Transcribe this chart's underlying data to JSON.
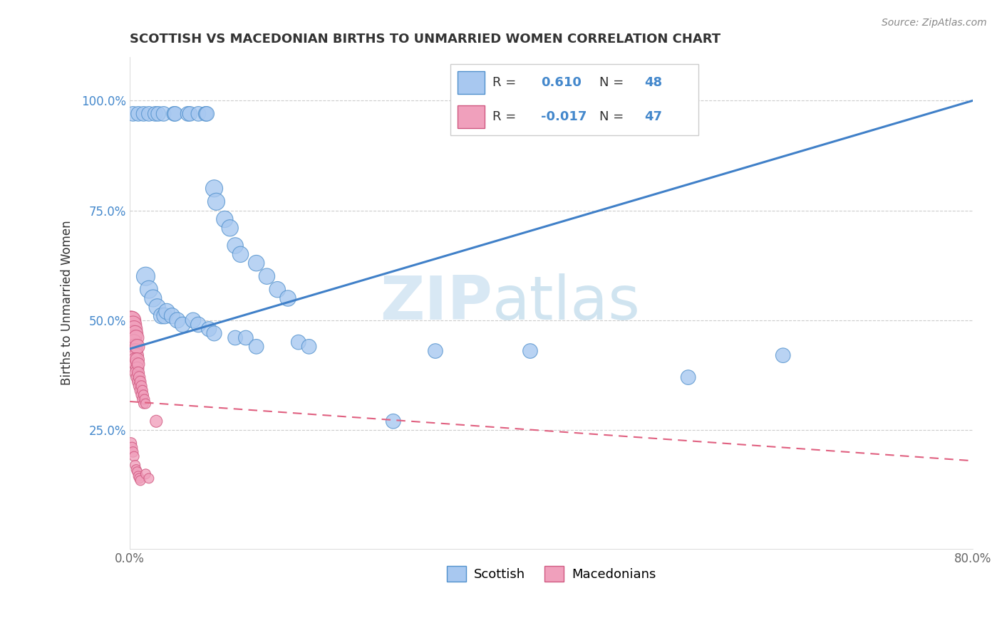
{
  "title": "SCOTTISH VS MACEDONIAN BIRTHS TO UNMARRIED WOMEN CORRELATION CHART",
  "source": "Source: ZipAtlas.com",
  "ylabel": "Births to Unmarried Women",
  "xlim": [
    0.0,
    0.8
  ],
  "ylim": [
    -0.02,
    1.1
  ],
  "xticks": [
    0.0,
    0.1,
    0.2,
    0.3,
    0.4,
    0.5,
    0.6,
    0.7,
    0.8
  ],
  "xticklabels": [
    "0.0%",
    "",
    "",
    "",
    "",
    "",
    "",
    "",
    "80.0%"
  ],
  "yticks": [
    0.25,
    0.5,
    0.75,
    1.0
  ],
  "yticklabels": [
    "25.0%",
    "50.0%",
    "75.0%",
    "100.0%"
  ],
  "R_scottish": 0.61,
  "N_scottish": 48,
  "R_macedonian": -0.017,
  "N_macedonian": 47,
  "watermark_zip": "ZIP",
  "watermark_atlas": "atlas",
  "scottish_color": "#A8C8F0",
  "macedonian_color": "#F0A0BC",
  "scottish_edge_color": "#5090CC",
  "macedonian_edge_color": "#D05880",
  "scottish_line_color": "#4080C8",
  "macedonian_line_color": "#E06080",
  "scottish_points": [
    [
      0.003,
      0.97
    ],
    [
      0.008,
      0.97
    ],
    [
      0.013,
      0.97
    ],
    [
      0.018,
      0.97
    ],
    [
      0.024,
      0.97
    ],
    [
      0.027,
      0.97
    ],
    [
      0.032,
      0.97
    ],
    [
      0.042,
      0.97
    ],
    [
      0.043,
      0.97
    ],
    [
      0.055,
      0.97
    ],
    [
      0.057,
      0.97
    ],
    [
      0.065,
      0.97
    ],
    [
      0.072,
      0.97
    ],
    [
      0.073,
      0.97
    ],
    [
      0.08,
      0.8
    ],
    [
      0.082,
      0.77
    ],
    [
      0.09,
      0.73
    ],
    [
      0.095,
      0.71
    ],
    [
      0.1,
      0.67
    ],
    [
      0.105,
      0.65
    ],
    [
      0.12,
      0.63
    ],
    [
      0.13,
      0.6
    ],
    [
      0.14,
      0.57
    ],
    [
      0.15,
      0.55
    ],
    [
      0.015,
      0.6
    ],
    [
      0.018,
      0.57
    ],
    [
      0.022,
      0.55
    ],
    [
      0.026,
      0.53
    ],
    [
      0.03,
      0.51
    ],
    [
      0.033,
      0.51
    ],
    [
      0.035,
      0.52
    ],
    [
      0.04,
      0.51
    ],
    [
      0.045,
      0.5
    ],
    [
      0.05,
      0.49
    ],
    [
      0.06,
      0.5
    ],
    [
      0.065,
      0.49
    ],
    [
      0.075,
      0.48
    ],
    [
      0.08,
      0.47
    ],
    [
      0.1,
      0.46
    ],
    [
      0.11,
      0.46
    ],
    [
      0.12,
      0.44
    ],
    [
      0.16,
      0.45
    ],
    [
      0.17,
      0.44
    ],
    [
      0.25,
      0.27
    ],
    [
      0.29,
      0.43
    ],
    [
      0.38,
      0.43
    ],
    [
      0.53,
      0.37
    ],
    [
      0.62,
      0.42
    ]
  ],
  "scottish_sizes": [
    220,
    220,
    220,
    220,
    220,
    220,
    220,
    220,
    220,
    220,
    220,
    220,
    220,
    220,
    300,
    300,
    280,
    280,
    260,
    260,
    260,
    260,
    260,
    260,
    350,
    320,
    300,
    280,
    260,
    260,
    260,
    250,
    250,
    240,
    240,
    240,
    230,
    230,
    220,
    220,
    220,
    220,
    220,
    220,
    220,
    220,
    220,
    220
  ],
  "macedonian_points": [
    [
      0.001,
      0.5
    ],
    [
      0.002,
      0.5
    ],
    [
      0.003,
      0.49
    ],
    [
      0.003,
      0.47
    ],
    [
      0.004,
      0.48
    ],
    [
      0.004,
      0.46
    ],
    [
      0.005,
      0.47
    ],
    [
      0.004,
      0.45
    ],
    [
      0.005,
      0.44
    ],
    [
      0.006,
      0.46
    ],
    [
      0.005,
      0.43
    ],
    [
      0.006,
      0.42
    ],
    [
      0.007,
      0.44
    ],
    [
      0.005,
      0.41
    ],
    [
      0.006,
      0.4
    ],
    [
      0.007,
      0.41
    ],
    [
      0.007,
      0.39
    ],
    [
      0.006,
      0.38
    ],
    [
      0.007,
      0.37
    ],
    [
      0.008,
      0.4
    ],
    [
      0.008,
      0.38
    ],
    [
      0.008,
      0.36
    ],
    [
      0.009,
      0.37
    ],
    [
      0.009,
      0.35
    ],
    [
      0.01,
      0.36
    ],
    [
      0.01,
      0.34
    ],
    [
      0.011,
      0.35
    ],
    [
      0.011,
      0.33
    ],
    [
      0.012,
      0.34
    ],
    [
      0.012,
      0.32
    ],
    [
      0.013,
      0.33
    ],
    [
      0.013,
      0.31
    ],
    [
      0.014,
      0.32
    ],
    [
      0.015,
      0.31
    ],
    [
      0.001,
      0.22
    ],
    [
      0.002,
      0.21
    ],
    [
      0.003,
      0.2
    ],
    [
      0.004,
      0.19
    ],
    [
      0.005,
      0.17
    ],
    [
      0.006,
      0.16
    ],
    [
      0.007,
      0.155
    ],
    [
      0.008,
      0.145
    ],
    [
      0.009,
      0.14
    ],
    [
      0.01,
      0.135
    ],
    [
      0.015,
      0.15
    ],
    [
      0.018,
      0.14
    ],
    [
      0.025,
      0.27
    ]
  ],
  "macedonian_sizes": [
    350,
    320,
    300,
    280,
    280,
    260,
    250,
    240,
    240,
    240,
    220,
    220,
    220,
    200,
    200,
    200,
    180,
    170,
    160,
    160,
    150,
    150,
    140,
    140,
    130,
    130,
    120,
    120,
    110,
    110,
    100,
    100,
    100,
    100,
    130,
    120,
    110,
    100,
    100,
    100,
    100,
    100,
    100,
    100,
    100,
    100,
    150
  ],
  "scottish_trend": [
    0.0,
    0.8,
    0.435,
    1.0
  ],
  "macedonian_trend": [
    0.0,
    0.8,
    0.315,
    0.18
  ]
}
